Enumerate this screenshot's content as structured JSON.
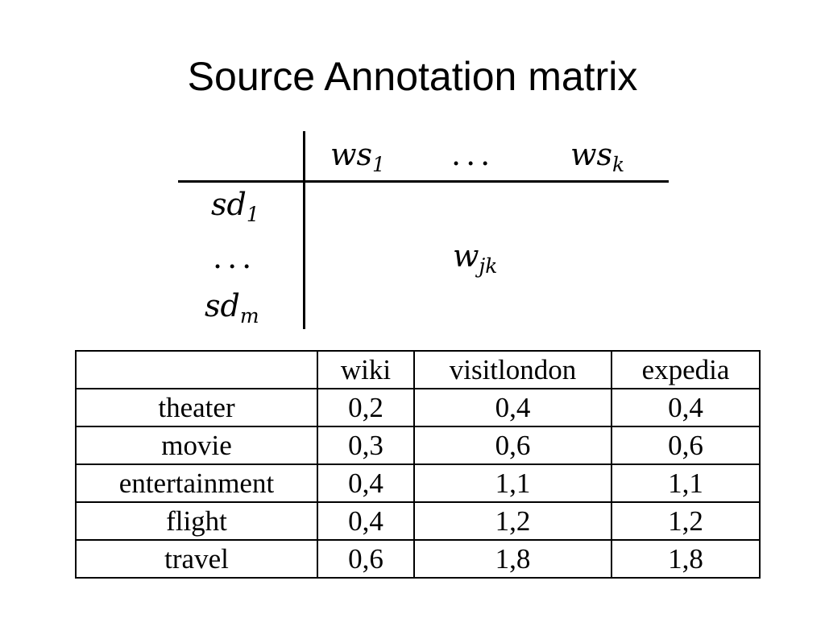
{
  "slide": {
    "title": "Source Annotation matrix"
  },
  "matrix": {
    "column_headers": [
      {
        "base": "ws",
        "sub": "1"
      },
      {
        "dots": "..."
      },
      {
        "base": "ws",
        "sub": "k"
      }
    ],
    "row_headers": [
      {
        "base": "sd",
        "sub": "1"
      },
      {
        "dots": "..."
      },
      {
        "base": "sd",
        "sub": "m"
      }
    ],
    "cell": {
      "base": "w",
      "sub": "jk"
    }
  },
  "table": {
    "headers": [
      "",
      "wiki",
      "visitlondon",
      "expedia"
    ],
    "rows": [
      {
        "label": "theater",
        "values": [
          "0,2",
          "0,4",
          "0,4"
        ]
      },
      {
        "label": "movie",
        "values": [
          "0,3",
          "0,6",
          "0,6"
        ]
      },
      {
        "label": "entertainment",
        "values": [
          "0,4",
          "1,1",
          "1,1"
        ]
      },
      {
        "label": "flight",
        "values": [
          "0,4",
          "1,2",
          "1,2"
        ]
      },
      {
        "label": "travel",
        "values": [
          "0,6",
          "1,8",
          "1,8"
        ]
      }
    ]
  }
}
